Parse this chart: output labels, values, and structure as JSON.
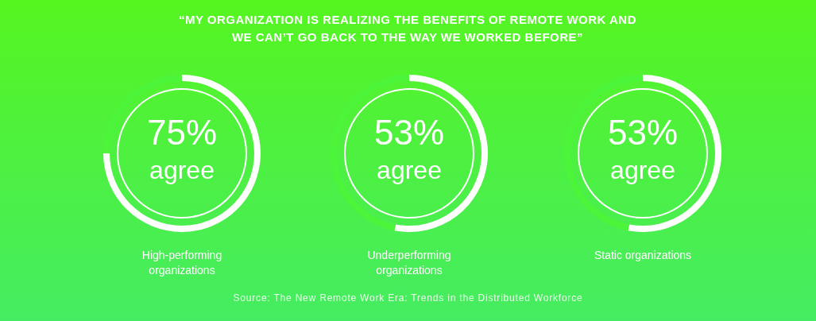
{
  "chart_data": [
    {
      "type": "donut",
      "title": "“MY ORGANIZATION IS REALIZING THE BENEFITS OF REMOTE WORK AND WE CAN’T GO BACK TO THE WAY WE WORKED BEFORE”",
      "categories": [
        "agree",
        null
      ],
      "values": [
        75,
        25
      ],
      "colors": [
        "#ffffff",
        "#4df53a"
      ],
      "value_labels": [
        "75%",
        null
      ],
      "xlabel": "High-performing organizations"
    },
    {
      "type": "donut",
      "categories": [
        "agree",
        null
      ],
      "values": [
        53,
        47
      ],
      "colors": [
        "#ffffff",
        "#4df53a"
      ],
      "value_labels": [
        "53%",
        null
      ],
      "xlabel": "Underperforming organizations",
      "annotations": [
        "Source: The New Remote Work Era: Trends in the Distributed Workforce"
      ]
    },
    {
      "type": "donut",
      "categories": [
        "agree",
        null
      ],
      "values": [
        53,
        47
      ],
      "colors": [
        "#ffffff",
        "#4df53a"
      ],
      "value_labels": [
        "53%",
        null
      ],
      "xlabel": "Static organizations"
    }
  ]
}
